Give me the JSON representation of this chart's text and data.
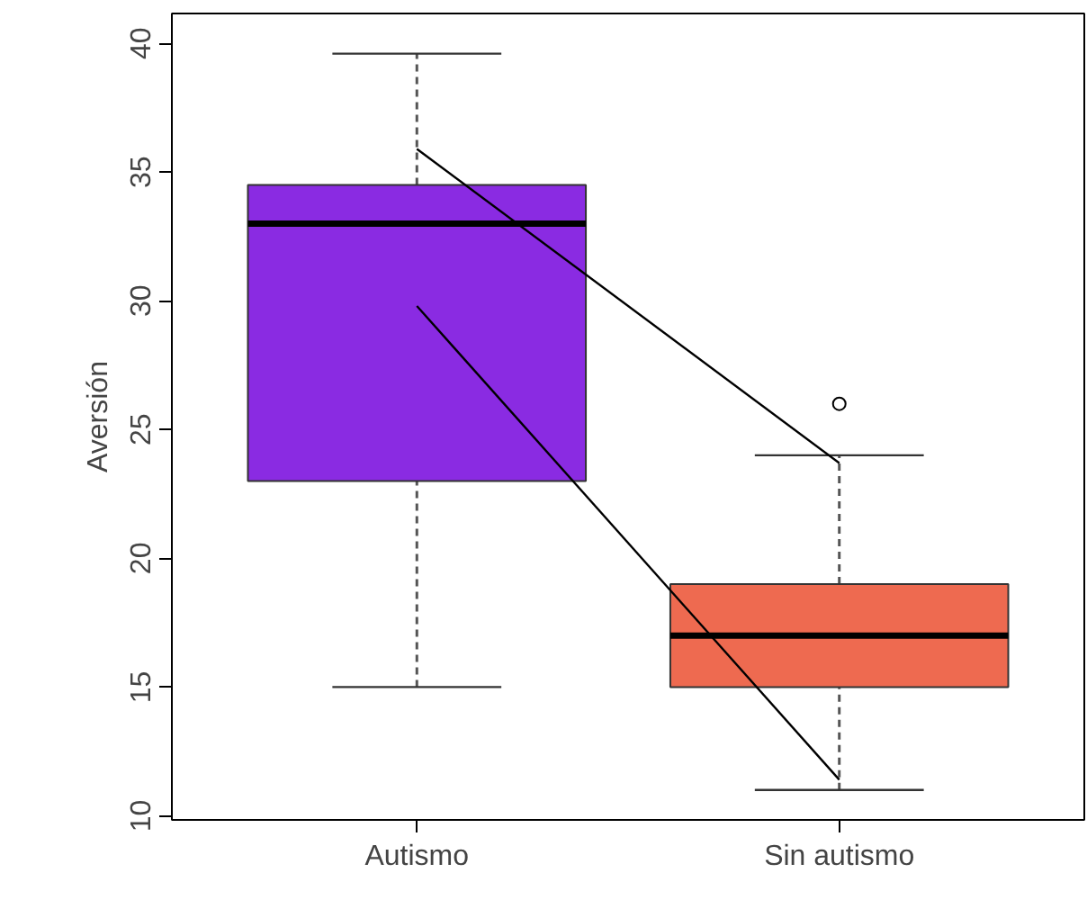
{
  "chart_data": {
    "type": "box",
    "ylabel": "Aversión",
    "categories": [
      "Autismo",
      "Sin autismo"
    ],
    "colors": [
      "#8a2be2",
      "#ee6a50"
    ],
    "boxes": [
      {
        "low": 15,
        "q1": 23,
        "median": 33,
        "q3": 34.5,
        "high": 39.6
      },
      {
        "low": 11,
        "q1": 15,
        "median": 17,
        "q3": 19,
        "high": 24,
        "outliers": [
          26
        ]
      }
    ],
    "ylim": [
      9.84,
      41.16
    ],
    "yticks": [
      10,
      15,
      20,
      25,
      30,
      35,
      40
    ],
    "grid": false,
    "series": [
      {
        "type": "line",
        "color": "#000000",
        "values": [
          29.8,
          11.4
        ]
      },
      {
        "type": "line",
        "color": "#000000",
        "values": [
          35.9,
          23.7
        ]
      }
    ]
  }
}
